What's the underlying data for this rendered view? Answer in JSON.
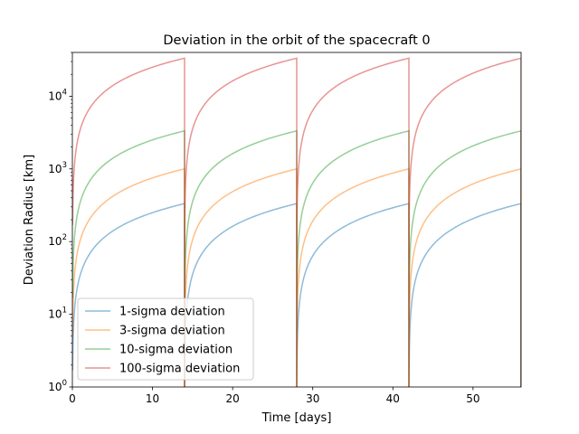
{
  "chart_data": {
    "type": "line",
    "title": "Deviation in the orbit of the spacecraft 0",
    "xlabel": "Time [days]",
    "ylabel": "Deviation Radius [km]",
    "xlim": [
      0,
      56
    ],
    "ylim": [
      1,
      40000
    ],
    "yscale": "log",
    "grid": false,
    "legend_position": "lower-left",
    "x_ticks": [
      0,
      10,
      20,
      30,
      40,
      50
    ],
    "x_tick_labels": [
      "0",
      "10",
      "20",
      "30",
      "40",
      "50"
    ],
    "y_ticks": [
      1,
      10,
      100,
      1000,
      10000
    ],
    "y_tick_labels": [
      "10^0",
      "10^1",
      "10^2",
      "10^3",
      "10^4"
    ],
    "reset_days": [
      0,
      14,
      28,
      42,
      56
    ],
    "series": [
      {
        "name": "1-sigma deviation",
        "color": "#1f77b4",
        "peak_value": 333,
        "x": [
          0.05,
          0.2,
          0.5,
          1,
          2,
          4,
          7,
          10,
          14
        ],
        "y": [
          0.6,
          10,
          24,
          45,
          80,
          140,
          210,
          270,
          333
        ]
      },
      {
        "name": "3-sigma deviation",
        "color": "#ff7f0e",
        "peak_value": 1000,
        "x": [
          0.05,
          0.2,
          0.5,
          1,
          2,
          4,
          7,
          10,
          14
        ],
        "y": [
          1.8,
          30,
          72,
          135,
          240,
          420,
          630,
          810,
          1000
        ]
      },
      {
        "name": "10-sigma deviation",
        "color": "#2ca02c",
        "peak_value": 3333,
        "x": [
          0.05,
          0.2,
          0.5,
          1,
          2,
          4,
          7,
          10,
          14
        ],
        "y": [
          6,
          100,
          240,
          450,
          800,
          1400,
          2100,
          2700,
          3333
        ]
      },
      {
        "name": "100-sigma deviation",
        "color": "#d62728",
        "peak_value": 33333,
        "x": [
          0.05,
          0.2,
          0.5,
          1,
          2,
          4,
          7,
          10,
          14
        ],
        "y": [
          60,
          1000,
          2400,
          4500,
          8000,
          14000,
          21000,
          27000,
          33333
        ]
      }
    ]
  }
}
